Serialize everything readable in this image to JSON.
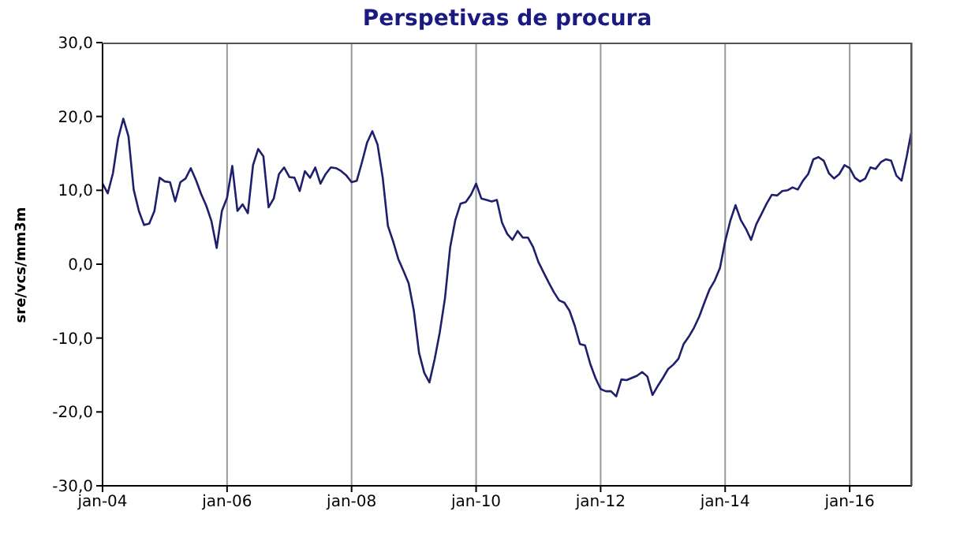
{
  "chart_data": {
    "type": "line",
    "title": "Perspetivas de procura",
    "ylabel": "sre/vcs/mm3m",
    "x": [
      "2004-01",
      "2004-02",
      "2004-03",
      "2004-04",
      "2004-05",
      "2004-06",
      "2004-07",
      "2004-08",
      "2004-09",
      "2004-10",
      "2004-11",
      "2004-12",
      "2005-01",
      "2005-02",
      "2005-03",
      "2005-04",
      "2005-05",
      "2005-06",
      "2005-07",
      "2005-08",
      "2005-09",
      "2005-10",
      "2005-11",
      "2005-12",
      "2006-01",
      "2006-02",
      "2006-03",
      "2006-04",
      "2006-05",
      "2006-06",
      "2006-07",
      "2006-08",
      "2006-09",
      "2006-10",
      "2006-11",
      "2006-12",
      "2007-01",
      "2007-02",
      "2007-03",
      "2007-04",
      "2007-05",
      "2007-06",
      "2007-07",
      "2007-08",
      "2007-09",
      "2007-10",
      "2007-11",
      "2007-12",
      "2008-01",
      "2008-02",
      "2008-03",
      "2008-04",
      "2008-05",
      "2008-06",
      "2008-07",
      "2008-08",
      "2008-09",
      "2008-10",
      "2008-11",
      "2008-12",
      "2009-01",
      "2009-02",
      "2009-03",
      "2009-04",
      "2009-05",
      "2009-06",
      "2009-07",
      "2009-08",
      "2009-09",
      "2009-10",
      "2009-11",
      "2009-12",
      "2010-01",
      "2010-02",
      "2010-03",
      "2010-04",
      "2010-05",
      "2010-06",
      "2010-07",
      "2010-08",
      "2010-09",
      "2010-10",
      "2010-11",
      "2010-12",
      "2011-01",
      "2011-02",
      "2011-03",
      "2011-04",
      "2011-05",
      "2011-06",
      "2011-07",
      "2011-08",
      "2011-09",
      "2011-10",
      "2011-11",
      "2011-12",
      "2012-01",
      "2012-02",
      "2012-03",
      "2012-04",
      "2012-05",
      "2012-06",
      "2012-07",
      "2012-08",
      "2012-09",
      "2012-10",
      "2012-11",
      "2012-12",
      "2013-01",
      "2013-02",
      "2013-03",
      "2013-04",
      "2013-05",
      "2013-06",
      "2013-07",
      "2013-08",
      "2013-09",
      "2013-10",
      "2013-11",
      "2013-12",
      "2014-01",
      "2014-02",
      "2014-03",
      "2014-04",
      "2014-05",
      "2014-06",
      "2014-07",
      "2014-08",
      "2014-09",
      "2014-10",
      "2014-11",
      "2014-12",
      "2015-01",
      "2015-02",
      "2015-03",
      "2015-04",
      "2015-05",
      "2015-06",
      "2015-07",
      "2015-08",
      "2015-09",
      "2015-10",
      "2015-11",
      "2015-12",
      "2016-01",
      "2016-02",
      "2016-03",
      "2016-04",
      "2016-05",
      "2016-06",
      "2016-07",
      "2016-08",
      "2016-09",
      "2016-10",
      "2016-11",
      "2016-12",
      "2017-01"
    ],
    "series": [
      {
        "color": "#1f1f6b",
        "values": [
          10.9,
          9.6,
          12.3,
          17,
          19.7,
          17.3,
          10.1,
          7.2,
          5.3,
          5.5,
          7.2,
          11.7,
          11.2,
          11.1,
          8.5,
          11.1,
          11.6,
          13,
          11.4,
          9.5,
          7.9,
          5.8,
          2.2,
          7.2,
          9,
          13.3,
          7.2,
          8.1,
          6.9,
          13.4,
          15.6,
          14.6,
          7.7,
          8.9,
          12.2,
          13.1,
          11.8,
          11.7,
          9.9,
          12.6,
          11.7,
          13.1,
          10.9,
          12.2,
          13.1,
          13,
          12.6,
          12,
          11.1,
          11.3,
          13.8,
          16.5,
          18,
          16.2,
          11.7,
          5.2,
          3.1,
          0.7,
          -0.9,
          -2.6,
          -6.3,
          -12,
          -14.7,
          -16,
          -12.9,
          -9.2,
          -4.6,
          2.3,
          6,
          8.2,
          8.4,
          9.4,
          10.9,
          8.9,
          8.7,
          8.5,
          8.7,
          5.6,
          4.1,
          3.3,
          4.5,
          3.6,
          3.6,
          2.3,
          0.3,
          -1.1,
          -2.5,
          -3.8,
          -4.9,
          -5.2,
          -6.3,
          -8.3,
          -10.8,
          -11,
          -13.5,
          -15.4,
          -16.9,
          -17.2,
          -17.2,
          -17.9,
          -15.6,
          -15.7,
          -15.4,
          -15.1,
          -14.6,
          -15.2,
          -17.7,
          -16.5,
          -15.4,
          -14.2,
          -13.6,
          -12.8,
          -10.8,
          -9.8,
          -8.6,
          -7.1,
          -5.2,
          -3.4,
          -2.2,
          -0.5,
          3.1,
          5.9,
          8,
          6,
          4.8,
          3.3,
          5.4,
          6.8,
          8.2,
          9.4,
          9.3,
          9.9,
          10,
          10.4,
          10.1,
          11.3,
          12.2,
          14.2,
          14.5,
          14,
          12.3,
          11.6,
          12.2,
          13.4,
          13,
          11.7,
          11.2,
          11.6,
          13.1,
          12.9,
          13.8,
          14.2,
          14,
          12,
          11.3,
          14.6,
          18.3
        ]
      }
    ],
    "xlim": [
      "2004-01",
      "2017-01"
    ],
    "xticks": [
      {
        "value": "2004-01",
        "label": "jan-04"
      },
      {
        "value": "2006-01",
        "label": "jan-06"
      },
      {
        "value": "2008-01",
        "label": "jan-08"
      },
      {
        "value": "2010-01",
        "label": "jan-10"
      },
      {
        "value": "2012-01",
        "label": "jan-12"
      },
      {
        "value": "2014-01",
        "label": "jan-14"
      },
      {
        "value": "2016-01",
        "label": "jan-16"
      }
    ],
    "ylim": [
      -30,
      30
    ],
    "yticks": [
      {
        "value": -30,
        "label": "-30,0"
      },
      {
        "value": -20,
        "label": "-20,0"
      },
      {
        "value": -10,
        "label": "-10,0"
      },
      {
        "value": 0,
        "label": "0,0"
      },
      {
        "value": 10,
        "label": "10,0"
      },
      {
        "value": 20,
        "label": "20,0"
      },
      {
        "value": 30,
        "label": "30,0"
      }
    ],
    "grid": "x",
    "legend": false,
    "marker": "none",
    "line_style": "solid"
  }
}
